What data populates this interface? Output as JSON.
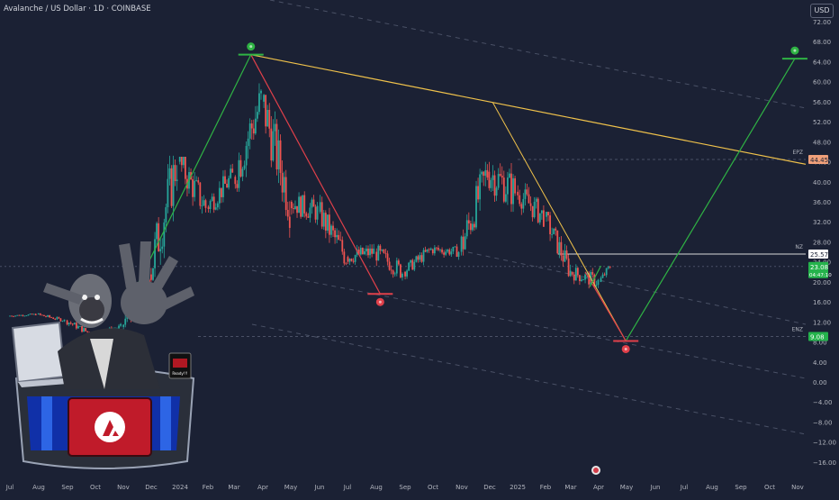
{
  "header": {
    "title": "Avalanche / US Dollar · 1D · COINBASE",
    "currency_button": "USD"
  },
  "colors": {
    "background": "#1b2134",
    "axis_text": "#b2b5be",
    "bull": "#26a69a",
    "bear": "#ef5350",
    "green_line": "#2fb344",
    "red_line": "#e0404a",
    "yellow_line": "#f0c24b",
    "dashed": "#4a5166",
    "label_orange": "#f0a07a",
    "label_green": "#25b34c",
    "label_white": "#ffffff"
  },
  "chart_data": {
    "type": "candlestick",
    "symbol": "Avalanche / US Dollar",
    "timeframe": "1D",
    "exchange": "COINBASE",
    "y_axis": {
      "ticks": [
        "72.00",
        "68.00",
        "64.00",
        "60.00",
        "56.00",
        "52.00",
        "48.00",
        "44.00",
        "40.00",
        "36.00",
        "32.00",
        "28.00",
        "24.00",
        "20.00",
        "16.00",
        "12.00",
        "8.00",
        "4.00",
        "0.00",
        "−4.00",
        "−8.00",
        "−12.00",
        "−16.00"
      ],
      "range": [
        -18,
        74
      ]
    },
    "x_axis": {
      "ticks": [
        "Jul",
        "Aug",
        "Sep",
        "Oct",
        "Nov",
        "Dec",
        "2024",
        "Feb",
        "Mar",
        "Apr",
        "May",
        "Jun",
        "Jul",
        "Aug",
        "Sep",
        "Oct",
        "Nov",
        "Dec",
        "2025",
        "Feb",
        "Mar",
        "Apr",
        "May",
        "Jun",
        "Jul",
        "Aug",
        "Sep",
        "Oct",
        "Nov"
      ]
    },
    "price_labels": [
      {
        "name": "EPZ",
        "value": "44.45",
        "style": "orange"
      },
      {
        "name": "NZ",
        "value": "25.57",
        "style": "white"
      },
      {
        "name": "current",
        "value": "23.08",
        "countdown": "04:47:10",
        "style": "green"
      },
      {
        "name": "ENZ",
        "value": "9.08",
        "style": "green"
      }
    ],
    "markers": [
      {
        "date": "2024-03-18",
        "price": 65.4,
        "type": "high"
      },
      {
        "date": "2024-08-05",
        "price": 17.6,
        "type": "low"
      },
      {
        "date": "2025-04-28",
        "price": 8.2,
        "type": "projected-low"
      },
      {
        "date": "2025-10-28",
        "price": 64.6,
        "type": "projected-high"
      }
    ],
    "series": [
      {
        "date": "2023-07-01",
        "open": 13.2,
        "high": 13.9,
        "low": 12.8,
        "close": 13.5
      },
      {
        "date": "2023-08-01",
        "open": 13.5,
        "high": 13.9,
        "low": 12.0,
        "close": 12.3
      },
      {
        "date": "2023-09-01",
        "open": 12.3,
        "high": 12.5,
        "low": 9.0,
        "close": 9.4
      },
      {
        "date": "2023-10-01",
        "open": 9.4,
        "high": 12.0,
        "low": 8.7,
        "close": 11.0
      },
      {
        "date": "2023-11-01",
        "open": 11.0,
        "high": 23.0,
        "low": 10.5,
        "close": 21.5
      },
      {
        "date": "2023-12-01",
        "open": 21.5,
        "high": 50.0,
        "low": 20.0,
        "close": 44.0
      },
      {
        "date": "2024-01-01",
        "open": 44.0,
        "high": 45.0,
        "low": 27.0,
        "close": 35.0
      },
      {
        "date": "2024-02-01",
        "open": 35.0,
        "high": 44.0,
        "low": 31.0,
        "close": 41.0
      },
      {
        "date": "2024-03-01",
        "open": 41.0,
        "high": 65.4,
        "low": 38.0,
        "close": 56.0
      },
      {
        "date": "2024-04-01",
        "open": 56.0,
        "high": 58.0,
        "low": 28.0,
        "close": 36.0
      },
      {
        "date": "2024-05-01",
        "open": 36.0,
        "high": 42.0,
        "low": 29.0,
        "close": 34.0
      },
      {
        "date": "2024-06-01",
        "open": 34.0,
        "high": 38.0,
        "low": 22.5,
        "close": 25.0
      },
      {
        "date": "2024-07-01",
        "open": 25.0,
        "high": 31.0,
        "low": 22.0,
        "close": 26.0
      },
      {
        "date": "2024-08-01",
        "open": 26.0,
        "high": 28.0,
        "low": 17.6,
        "close": 22.0
      },
      {
        "date": "2024-09-01",
        "open": 22.0,
        "high": 27.5,
        "low": 20.5,
        "close": 26.5
      },
      {
        "date": "2024-10-01",
        "open": 26.5,
        "high": 30.0,
        "low": 24.0,
        "close": 26.0
      },
      {
        "date": "2024-11-01",
        "open": 26.0,
        "high": 45.0,
        "low": 23.0,
        "close": 42.0
      },
      {
        "date": "2024-12-01",
        "open": 42.0,
        "high": 55.5,
        "low": 34.0,
        "close": 38.0
      },
      {
        "date": "2025-01-01",
        "open": 38.0,
        "high": 45.0,
        "low": 31.0,
        "close": 33.0
      },
      {
        "date": "2025-02-01",
        "open": 33.0,
        "high": 34.0,
        "low": 21.0,
        "close": 22.0
      },
      {
        "date": "2025-03-01",
        "open": 22.0,
        "high": 24.0,
        "low": 15.5,
        "close": 20.0
      },
      {
        "date": "2025-04-01",
        "open": 20.0,
        "high": 23.2,
        "low": 18.5,
        "close": 23.08
      }
    ]
  },
  "overlay_art": {
    "monitor_label": "Ready!!!"
  }
}
